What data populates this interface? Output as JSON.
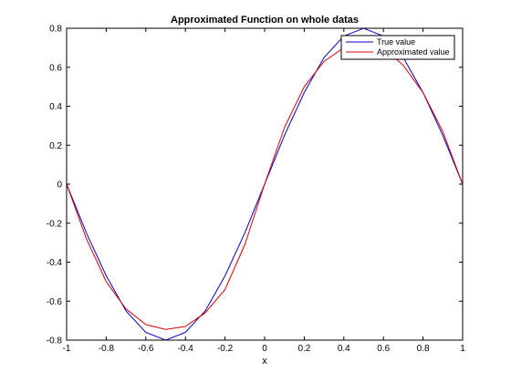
{
  "chart_data": {
    "type": "line",
    "title": "Approximated Function on whole datas",
    "xlabel": "x",
    "ylabel": "",
    "xlim": [
      -1,
      1
    ],
    "ylim": [
      -0.8,
      0.8
    ],
    "xticks": [
      -1,
      -0.8,
      -0.6,
      -0.4,
      -0.2,
      0,
      0.2,
      0.4,
      0.6,
      0.8,
      1
    ],
    "xtick_labels": [
      "-1",
      "-0.8",
      "-0.6",
      "-0.4",
      "-0.2",
      "0",
      "0.2",
      "0.4",
      "0.6",
      "0.8",
      "1"
    ],
    "yticks": [
      -0.8,
      -0.6,
      -0.4,
      -0.2,
      0,
      0.2,
      0.4,
      0.6,
      0.8
    ],
    "ytick_labels": [
      "-0.8",
      "-0.6",
      "-0.4",
      "-0.2",
      "0",
      "0.2",
      "0.4",
      "0.6",
      "0.8"
    ],
    "grid": false,
    "legend_position": "top-right",
    "x": [
      -1,
      -0.9,
      -0.8,
      -0.7,
      -0.6,
      -0.5,
      -0.4,
      -0.3,
      -0.2,
      -0.1,
      0,
      0.1,
      0.2,
      0.3,
      0.4,
      0.5,
      0.6,
      0.7,
      0.8,
      0.9,
      1
    ],
    "series": [
      {
        "name": "True value",
        "color": "#0000cc",
        "values": [
          0,
          -0.25,
          -0.47,
          -0.65,
          -0.76,
          -0.8,
          -0.76,
          -0.65,
          -0.47,
          -0.25,
          0,
          0.25,
          0.47,
          0.65,
          0.76,
          0.8,
          0.76,
          0.65,
          0.47,
          0.25,
          0
        ]
      },
      {
        "name": "Approximated value",
        "color": "#dd0000",
        "values": [
          0,
          -0.28,
          -0.5,
          -0.64,
          -0.72,
          -0.745,
          -0.73,
          -0.66,
          -0.54,
          -0.31,
          0,
          0.29,
          0.5,
          0.63,
          0.7,
          0.73,
          0.7,
          0.61,
          0.47,
          0.27,
          0
        ]
      }
    ]
  }
}
